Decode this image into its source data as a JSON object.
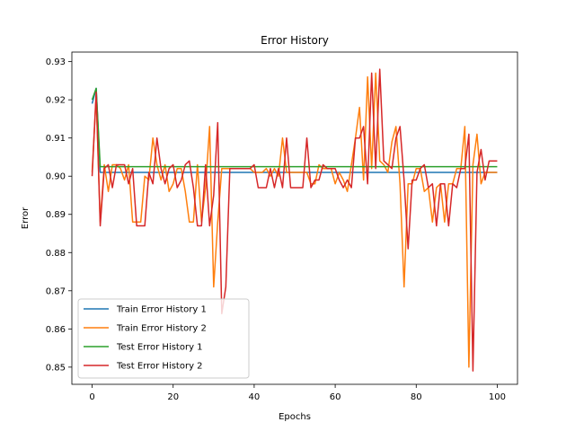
{
  "chart_data": {
    "type": "line",
    "title": "Error History",
    "xlabel": "Epochs",
    "ylabel": "Error",
    "xlim": [
      -5,
      105
    ],
    "ylim": [
      0.8455,
      0.9325
    ],
    "xticks": [
      0,
      20,
      40,
      60,
      80,
      100
    ],
    "yticks": [
      0.85,
      0.86,
      0.87,
      0.88,
      0.89,
      0.9,
      0.91,
      0.92,
      0.93
    ],
    "ytick_labels": [
      "0.85",
      "0.86",
      "0.87",
      "0.88",
      "0.89",
      "0.90",
      "0.91",
      "0.92",
      "0.93"
    ],
    "grid": false,
    "legend_position": "lower-left",
    "x": [
      0,
      1,
      2,
      3,
      4,
      5,
      6,
      7,
      8,
      9,
      10,
      11,
      12,
      13,
      14,
      15,
      16,
      17,
      18,
      19,
      20,
      21,
      22,
      23,
      24,
      25,
      26,
      27,
      28,
      29,
      30,
      31,
      32,
      33,
      34,
      35,
      36,
      37,
      38,
      39,
      40,
      41,
      42,
      43,
      44,
      45,
      46,
      47,
      48,
      49,
      50,
      51,
      52,
      53,
      54,
      55,
      56,
      57,
      58,
      59,
      60,
      61,
      62,
      63,
      64,
      65,
      66,
      67,
      68,
      69,
      70,
      71,
      72,
      73,
      74,
      75,
      76,
      77,
      78,
      79,
      80,
      81,
      82,
      83,
      84,
      85,
      86,
      87,
      88,
      89,
      90,
      91,
      92,
      93,
      94,
      95,
      96,
      97,
      98,
      99,
      100
    ],
    "series": [
      {
        "name": "Train Error History 1",
        "color": "#1f77b4",
        "values": [
          0.919,
          0.923,
          0.901,
          0.901,
          0.901,
          0.901,
          0.901,
          0.901,
          0.901,
          0.901,
          0.901,
          0.901,
          0.901,
          0.901,
          0.901,
          0.901,
          0.901,
          0.901,
          0.901,
          0.901,
          0.901,
          0.901,
          0.901,
          0.901,
          0.901,
          0.901,
          0.901,
          0.901,
          0.901,
          0.901,
          0.901,
          0.901,
          0.901,
          0.901,
          0.901,
          0.901,
          0.901,
          0.901,
          0.901,
          0.901,
          0.901,
          0.901,
          0.901,
          0.901,
          0.901,
          0.901,
          0.901,
          0.901,
          0.901,
          0.901,
          0.901,
          0.901,
          0.901,
          0.901,
          0.901,
          0.901,
          0.901,
          0.901,
          0.901,
          0.901,
          0.901,
          0.901,
          0.901,
          0.901,
          0.901,
          0.901,
          0.901,
          0.901,
          0.901,
          0.901,
          0.901,
          0.901,
          0.901,
          0.901,
          0.901,
          0.901,
          0.901,
          0.901,
          0.901,
          0.901,
          0.901,
          0.901,
          0.901,
          0.901,
          0.901,
          0.901,
          0.901,
          0.901,
          0.901,
          0.901,
          0.901,
          0.901,
          0.901,
          0.901,
          0.901,
          0.901,
          0.901,
          0.901,
          0.901,
          0.901,
          0.901
        ]
      },
      {
        "name": "Train Error History 2",
        "color": "#ff7f0e",
        "values": [
          0.901,
          0.921,
          0.888,
          0.903,
          0.896,
          0.903,
          0.903,
          0.902,
          0.899,
          0.903,
          0.888,
          0.888,
          0.888,
          0.9,
          0.899,
          0.91,
          0.903,
          0.899,
          0.903,
          0.896,
          0.898,
          0.902,
          0.902,
          0.896,
          0.888,
          0.888,
          0.903,
          0.888,
          0.897,
          0.913,
          0.871,
          0.888,
          0.902,
          0.902,
          0.902,
          0.902,
          0.902,
          0.902,
          0.902,
          0.902,
          0.901,
          0.901,
          0.901,
          0.902,
          0.9,
          0.902,
          0.9,
          0.91,
          0.901,
          0.901,
          0.901,
          0.901,
          0.901,
          0.901,
          0.898,
          0.898,
          0.903,
          0.902,
          0.902,
          0.902,
          0.898,
          0.901,
          0.899,
          0.896,
          0.903,
          0.91,
          0.918,
          0.899,
          0.926,
          0.902,
          0.927,
          0.904,
          0.903,
          0.901,
          0.909,
          0.913,
          0.898,
          0.871,
          0.898,
          0.898,
          0.902,
          0.902,
          0.896,
          0.897,
          0.888,
          0.897,
          0.898,
          0.888,
          0.898,
          0.898,
          0.902,
          0.902,
          0.913,
          0.85,
          0.903,
          0.911,
          0.898,
          0.901,
          0.901,
          0.901,
          0.901
        ]
      },
      {
        "name": "Test Error History 1",
        "color": "#2ca02c",
        "values": [
          0.92,
          0.923,
          0.9025,
          0.9025,
          0.9025,
          0.9025,
          0.9025,
          0.9025,
          0.9025,
          0.9025,
          0.9025,
          0.9025,
          0.9025,
          0.9025,
          0.9025,
          0.9025,
          0.9025,
          0.9025,
          0.9025,
          0.9025,
          0.9025,
          0.9025,
          0.9025,
          0.9025,
          0.9025,
          0.9025,
          0.9025,
          0.9025,
          0.9025,
          0.9025,
          0.9025,
          0.9025,
          0.9025,
          0.9025,
          0.9025,
          0.9025,
          0.9025,
          0.9025,
          0.9025,
          0.9025,
          0.9025,
          0.9025,
          0.9025,
          0.9025,
          0.9025,
          0.9025,
          0.9025,
          0.9025,
          0.9025,
          0.9025,
          0.9025,
          0.9025,
          0.9025,
          0.9025,
          0.9025,
          0.9025,
          0.9025,
          0.9025,
          0.9025,
          0.9025,
          0.9025,
          0.9025,
          0.9025,
          0.9025,
          0.9025,
          0.9025,
          0.9025,
          0.9025,
          0.9025,
          0.9025,
          0.9025,
          0.9025,
          0.9025,
          0.9025,
          0.9025,
          0.9025,
          0.9025,
          0.9025,
          0.9025,
          0.9025,
          0.9025,
          0.9025,
          0.9025,
          0.9025,
          0.9025,
          0.9025,
          0.9025,
          0.9025,
          0.9025,
          0.9025,
          0.9025,
          0.9025,
          0.9025,
          0.9025,
          0.9025,
          0.9025,
          0.9025,
          0.9025,
          0.9025,
          0.9025,
          0.9025
        ]
      },
      {
        "name": "Test Error History 2",
        "color": "#d62728",
        "values": [
          0.9,
          0.922,
          0.887,
          0.902,
          0.903,
          0.897,
          0.903,
          0.903,
          0.903,
          0.898,
          0.902,
          0.887,
          0.887,
          0.887,
          0.901,
          0.898,
          0.91,
          0.902,
          0.898,
          0.902,
          0.903,
          0.897,
          0.899,
          0.903,
          0.904,
          0.897,
          0.887,
          0.887,
          0.903,
          0.887,
          0.895,
          0.914,
          0.864,
          0.871,
          0.902,
          0.902,
          0.902,
          0.902,
          0.902,
          0.902,
          0.903,
          0.897,
          0.897,
          0.897,
          0.902,
          0.897,
          0.902,
          0.897,
          0.91,
          0.897,
          0.897,
          0.897,
          0.897,
          0.91,
          0.897,
          0.899,
          0.899,
          0.903,
          0.902,
          0.902,
          0.902,
          0.899,
          0.897,
          0.899,
          0.897,
          0.91,
          0.91,
          0.913,
          0.898,
          0.927,
          0.902,
          0.928,
          0.904,
          0.903,
          0.902,
          0.91,
          0.913,
          0.899,
          0.881,
          0.899,
          0.899,
          0.902,
          0.903,
          0.897,
          0.898,
          0.887,
          0.898,
          0.898,
          0.887,
          0.898,
          0.897,
          0.902,
          0.902,
          0.911,
          0.849,
          0.901,
          0.907,
          0.899,
          0.904,
          0.904,
          0.904
        ]
      }
    ]
  }
}
